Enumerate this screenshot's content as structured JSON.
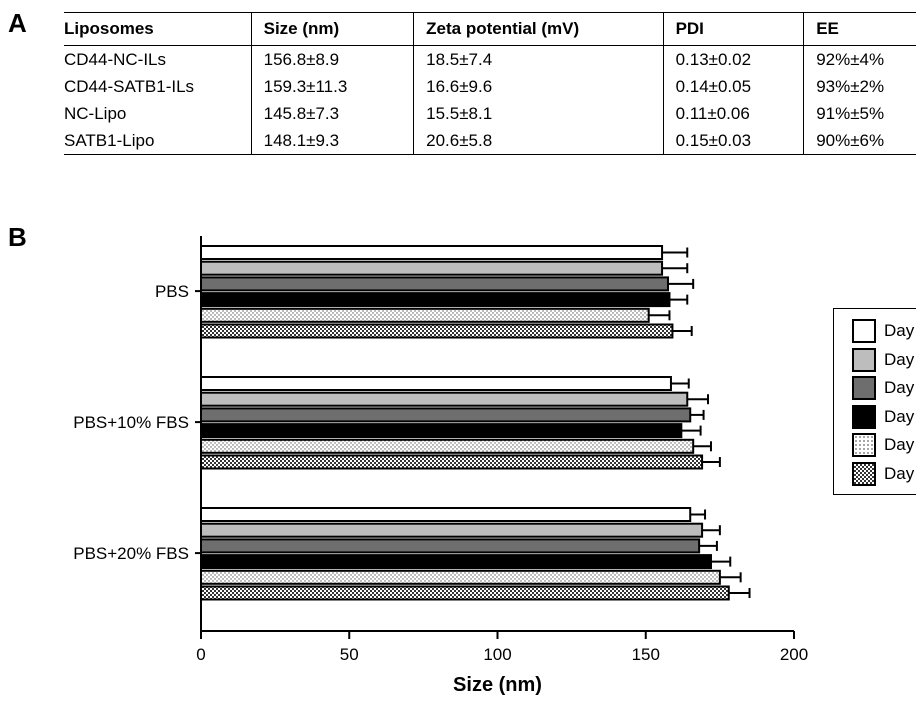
{
  "panel_a": {
    "letter": "A",
    "headers": [
      "Liposomes",
      "Size (nm)",
      "Zeta potential (mV)",
      "PDI",
      "EE"
    ],
    "rows": [
      [
        "CD44-NC-ILs",
        "156.8±8.9",
        "18.5±7.4",
        "0.13±0.02",
        "92%±4%"
      ],
      [
        "CD44-SATB1-ILs",
        "159.3±11.3",
        "16.6±9.6",
        "0.14±0.05",
        "93%±2%"
      ],
      [
        "NC-Lipo",
        "145.8±7.3",
        "15.5±8.1",
        "0.11±0.06",
        "91%±5%"
      ],
      [
        "SATB1-Lipo",
        "148.1±9.3",
        "20.6±5.8",
        "0.15±0.03",
        "90%±6%"
      ]
    ]
  },
  "panel_b": {
    "letter": "B"
  },
  "chart_data": {
    "type": "bar",
    "orientation": "horizontal",
    "categories": [
      "PBS",
      "PBS+10% FBS",
      "PBS+20% FBS"
    ],
    "xlabel": "Size (nm)",
    "ylabel": "",
    "xlim": [
      0,
      200
    ],
    "xticks": [
      0,
      50,
      100,
      150,
      200
    ],
    "legend_position": "right",
    "series": [
      {
        "name": "Day",
        "pattern": "white",
        "values": [
          155.5,
          158.5,
          165
        ],
        "errors": [
          8.5,
          6,
          5
        ]
      },
      {
        "name": "Day",
        "pattern": "light-gray",
        "values": [
          155.5,
          164,
          169
        ],
        "errors": [
          8.5,
          7,
          6
        ]
      },
      {
        "name": "Day",
        "pattern": "dark-gray",
        "values": [
          157.5,
          165,
          168
        ],
        "errors": [
          8.5,
          4.5,
          6
        ]
      },
      {
        "name": "Day",
        "pattern": "black",
        "values": [
          158,
          162,
          172
        ],
        "errors": [
          6,
          6.5,
          6.5
        ]
      },
      {
        "name": "Day",
        "pattern": "dotted",
        "values": [
          151,
          166,
          175
        ],
        "errors": [
          7,
          6,
          7
        ]
      },
      {
        "name": "Day",
        "pattern": "checkered",
        "values": [
          159,
          169,
          178
        ],
        "errors": [
          6.5,
          6,
          7
        ]
      }
    ]
  }
}
